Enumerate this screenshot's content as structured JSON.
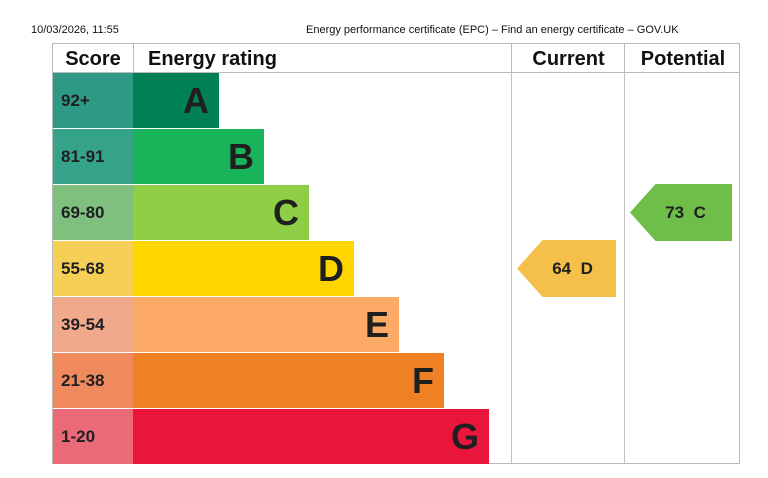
{
  "header": {
    "date_time": "10/03/2026, 11:55",
    "page_title": "Energy performance certificate (EPC) – Find an energy certificate – GOV.UK"
  },
  "table": {
    "col_score": "Score",
    "col_rating": "Energy rating",
    "col_current": "Current",
    "col_potential": "Potential"
  },
  "chart_data": {
    "type": "bar",
    "title": "",
    "bands": [
      {
        "score": "92+",
        "letter": "A",
        "color": "#008054",
        "score_color": "#2e9a85"
      },
      {
        "score": "81-91",
        "letter": "B",
        "color": "#19b459",
        "score_color": "#34a38a"
      },
      {
        "score": "69-80",
        "letter": "C",
        "color": "#8dce46",
        "score_color": "#7fc07f"
      },
      {
        "score": "55-68",
        "letter": "D",
        "color": "#ffd500",
        "score_color": "#f6cf56"
      },
      {
        "score": "39-54",
        "letter": "E",
        "color": "#fcaa65",
        "score_color": "#f0a98b"
      },
      {
        "score": "21-38",
        "letter": "F",
        "color": "#ef8023",
        "score_color": "#ee8a5e"
      },
      {
        "score": "1-20",
        "letter": "G",
        "color": "#e9153b",
        "score_color": "#eb6a78"
      }
    ],
    "current": {
      "value": 64,
      "letter": "D",
      "color": "#f5c04a"
    },
    "potential": {
      "value": 73,
      "letter": "C",
      "color": "#6fbe4a"
    }
  }
}
